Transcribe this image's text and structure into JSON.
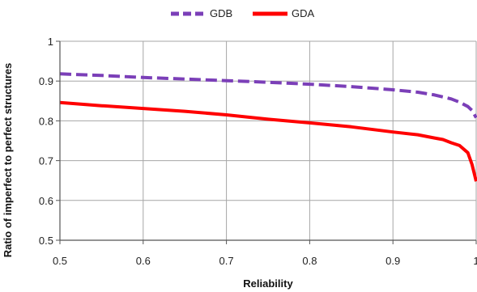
{
  "chart_data": {
    "type": "line",
    "xlabel": "Reliability",
    "ylabel": "Ratio of imperfect to perfect structures",
    "xlim": [
      0.5,
      1
    ],
    "ylim": [
      0.5,
      1
    ],
    "xticks": [
      "0.5",
      "0.6",
      "0.7",
      "0.8",
      "0.9",
      "1"
    ],
    "yticks": [
      "0.5",
      "0.6",
      "0.7",
      "0.8",
      "0.9",
      "1"
    ],
    "grid": true,
    "legend_position": "top-center",
    "series": [
      {
        "name": "GDB",
        "color": "#7b3fb8",
        "dash": "dashed",
        "x": [
          0.5,
          0.55,
          0.6,
          0.65,
          0.7,
          0.75,
          0.8,
          0.85,
          0.9,
          0.93,
          0.95,
          0.97,
          0.98,
          0.99,
          0.995,
          1.0
        ],
        "y": [
          0.918,
          0.914,
          0.909,
          0.905,
          0.901,
          0.897,
          0.892,
          0.886,
          0.878,
          0.872,
          0.865,
          0.855,
          0.847,
          0.836,
          0.826,
          0.808
        ]
      },
      {
        "name": "GDA",
        "color": "#ff0000",
        "dash": "solid",
        "x": [
          0.5,
          0.55,
          0.6,
          0.65,
          0.7,
          0.75,
          0.8,
          0.85,
          0.9,
          0.93,
          0.95,
          0.96,
          0.97,
          0.98,
          0.99,
          0.995,
          1.0
        ],
        "y": [
          0.846,
          0.838,
          0.831,
          0.824,
          0.815,
          0.804,
          0.795,
          0.785,
          0.772,
          0.765,
          0.757,
          0.753,
          0.745,
          0.738,
          0.72,
          0.69,
          0.648
        ]
      }
    ]
  }
}
